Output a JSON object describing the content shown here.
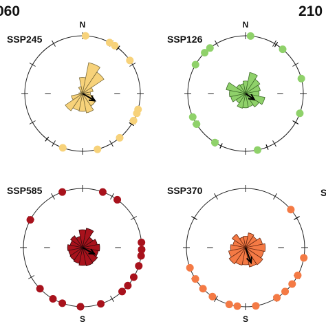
{
  "figure": {
    "year_labels": [
      "060",
      "210"
    ],
    "right_edge_label": "S"
  },
  "chart_data": [
    {
      "type": "rose",
      "panel": "SSP245",
      "title": "SSP245",
      "direction_labels": {
        "N": "N",
        "S": ""
      },
      "color": "#f7d27a",
      "outline": "#7a6a3a",
      "sectors": [
        {
          "dir": 0,
          "r": 0.45
        },
        {
          "dir": 22.5,
          "r": 0.88
        },
        {
          "dir": 45,
          "r": 0.72
        },
        {
          "dir": 67.5,
          "r": 0.3
        },
        {
          "dir": 90,
          "r": 0.22
        },
        {
          "dir": 112.5,
          "r": 0.3
        },
        {
          "dir": 135,
          "r": 0.42
        },
        {
          "dir": 157.5,
          "r": 0.55
        },
        {
          "dir": 180,
          "r": 0.5
        },
        {
          "dir": 202.5,
          "r": 0.48
        },
        {
          "dir": 225,
          "r": 0.58
        },
        {
          "dir": 247.5,
          "r": 0.32
        },
        {
          "dir": 270,
          "r": 0.1
        },
        {
          "dir": 292.5,
          "r": 0.05
        },
        {
          "dir": 315,
          "r": 0.08
        },
        {
          "dir": 337.5,
          "r": 0.2
        }
      ],
      "arrow": {
        "dir": 120,
        "r": 0.4
      },
      "points": [
        {
          "dir": 3,
          "type": "dot"
        },
        {
          "dir": 28,
          "type": "dot"
        },
        {
          "dir": 34,
          "type": "dot"
        },
        {
          "dir": 38,
          "type": "tick"
        },
        {
          "dir": 55,
          "type": "dot"
        },
        {
          "dir": 106,
          "type": "dot"
        },
        {
          "dir": 110,
          "type": "dot"
        },
        {
          "dir": 118,
          "type": "dot"
        },
        {
          "dir": 122,
          "type": "tick"
        },
        {
          "dir": 140,
          "type": "dot"
        },
        {
          "dir": 165,
          "type": "dot"
        },
        {
          "dir": 200,
          "type": "dot"
        },
        {
          "dir": 218,
          "type": "tick"
        }
      ]
    },
    {
      "type": "rose",
      "panel": "SSP126",
      "title": "SSP126",
      "direction_labels": {
        "N": "N",
        "S": ""
      },
      "color": "#8fd16a",
      "outline": "#3e6b2a",
      "sectors": [
        {
          "dir": 0,
          "r": 0.35
        },
        {
          "dir": 22.5,
          "r": 0.6
        },
        {
          "dir": 45,
          "r": 0.48
        },
        {
          "dir": 67.5,
          "r": 0.42
        },
        {
          "dir": 90,
          "r": 0.38
        },
        {
          "dir": 112.5,
          "r": 0.55
        },
        {
          "dir": 135,
          "r": 0.45
        },
        {
          "dir": 157.5,
          "r": 0.38
        },
        {
          "dir": 180,
          "r": 0.4
        },
        {
          "dir": 202.5,
          "r": 0.42
        },
        {
          "dir": 225,
          "r": 0.32
        },
        {
          "dir": 247.5,
          "r": 0.42
        },
        {
          "dir": 270,
          "r": 0.45
        },
        {
          "dir": 292.5,
          "r": 0.55
        },
        {
          "dir": 315,
          "r": 0.3
        },
        {
          "dir": 337.5,
          "r": 0.28
        }
      ],
      "arrow": {
        "dir": 125,
        "r": 0.3
      },
      "points": [
        {
          "dir": 5,
          "type": "dot"
        },
        {
          "dir": 32,
          "type": "tick"
        },
        {
          "dir": 40,
          "type": "dot"
        },
        {
          "dir": 75,
          "type": "dot"
        },
        {
          "dir": 110,
          "type": "dot"
        },
        {
          "dir": 120,
          "type": "tick"
        },
        {
          "dir": 158,
          "type": "tick"
        },
        {
          "dir": 168,
          "type": "dot"
        },
        {
          "dir": 205,
          "type": "tick"
        },
        {
          "dir": 212,
          "type": "dot"
        },
        {
          "dir": 238,
          "type": "dot"
        },
        {
          "dir": 246,
          "type": "dot"
        },
        {
          "dir": 300,
          "type": "dot"
        },
        {
          "dir": 315,
          "type": "dot"
        },
        {
          "dir": 322,
          "type": "dot"
        }
      ]
    },
    {
      "type": "rose",
      "panel": "SSP585",
      "title": "SSP585",
      "direction_labels": {
        "N": "",
        "S": "S"
      },
      "color": "#a8121c",
      "outline": "#3a0a0d",
      "sectors": [
        {
          "dir": 0,
          "r": 0.5
        },
        {
          "dir": 22.5,
          "r": 0.55
        },
        {
          "dir": 45,
          "r": 0.35
        },
        {
          "dir": 67.5,
          "r": 0.42
        },
        {
          "dir": 90,
          "r": 0.48
        },
        {
          "dir": 112.5,
          "r": 0.45
        },
        {
          "dir": 135,
          "r": 0.5
        },
        {
          "dir": 157.5,
          "r": 0.52
        },
        {
          "dir": 180,
          "r": 0.5
        },
        {
          "dir": 202.5,
          "r": 0.45
        },
        {
          "dir": 225,
          "r": 0.42
        },
        {
          "dir": 247.5,
          "r": 0.4
        },
        {
          "dir": 270,
          "r": 0.42
        },
        {
          "dir": 292.5,
          "r": 0.35
        },
        {
          "dir": 315,
          "r": 0.4
        },
        {
          "dir": 337.5,
          "r": 0.32
        }
      ],
      "arrow": {
        "dir": 118,
        "r": 0.38
      },
      "points": [
        {
          "dir": 20,
          "type": "dot"
        },
        {
          "dir": 36,
          "type": "dot"
        },
        {
          "dir": 85,
          "type": "dot"
        },
        {
          "dir": 92,
          "type": "dot"
        },
        {
          "dir": 98,
          "type": "dot"
        },
        {
          "dir": 108,
          "type": "dot"
        },
        {
          "dir": 120,
          "type": "dot"
        },
        {
          "dir": 130,
          "type": "dot"
        },
        {
          "dir": 138,
          "type": "dot"
        },
        {
          "dir": 162,
          "type": "dot"
        },
        {
          "dir": 182,
          "type": "dot"
        },
        {
          "dir": 200,
          "type": "dot"
        },
        {
          "dir": 210,
          "type": "dot"
        },
        {
          "dir": 226,
          "type": "dot"
        },
        {
          "dir": 298,
          "type": "dot"
        },
        {
          "dir": 340,
          "type": "dot"
        }
      ]
    },
    {
      "type": "rose",
      "panel": "SSP370",
      "title": "SSP370",
      "direction_labels": {
        "N": "",
        "S": "S"
      },
      "color": "#f47a45",
      "outline": "#6b2a12",
      "sectors": [
        {
          "dir": 0,
          "r": 0.32
        },
        {
          "dir": 22.5,
          "r": 0.42
        },
        {
          "dir": 45,
          "r": 0.38
        },
        {
          "dir": 67.5,
          "r": 0.48
        },
        {
          "dir": 90,
          "r": 0.55
        },
        {
          "dir": 112.5,
          "r": 0.52
        },
        {
          "dir": 135,
          "r": 0.58
        },
        {
          "dir": 157.5,
          "r": 0.55
        },
        {
          "dir": 180,
          "r": 0.48
        },
        {
          "dir": 202.5,
          "r": 0.5
        },
        {
          "dir": 225,
          "r": 0.55
        },
        {
          "dir": 247.5,
          "r": 0.48
        },
        {
          "dir": 270,
          "r": 0.42
        },
        {
          "dir": 292.5,
          "r": 0.36
        },
        {
          "dir": 315,
          "r": 0.45
        },
        {
          "dir": 337.5,
          "r": 0.3
        }
      ],
      "arrow": {
        "dir": 160,
        "r": 0.45
      },
      "points": [
        {
          "dir": 50,
          "type": "dot"
        },
        {
          "dir": 60,
          "type": "tick"
        },
        {
          "dir": 100,
          "type": "dot"
        },
        {
          "dir": 118,
          "type": "dot"
        },
        {
          "dir": 128,
          "type": "dot"
        },
        {
          "dir": 138,
          "type": "dot"
        },
        {
          "dir": 148,
          "type": "dot"
        },
        {
          "dir": 170,
          "type": "dot"
        },
        {
          "dir": 188,
          "type": "dot"
        },
        {
          "dir": 196,
          "type": "dot"
        },
        {
          "dir": 214,
          "type": "dot"
        },
        {
          "dir": 226,
          "type": "dot"
        },
        {
          "dir": 238,
          "type": "dot"
        },
        {
          "dir": 250,
          "type": "dot"
        },
        {
          "dir": 300,
          "type": "tick"
        }
      ]
    }
  ]
}
